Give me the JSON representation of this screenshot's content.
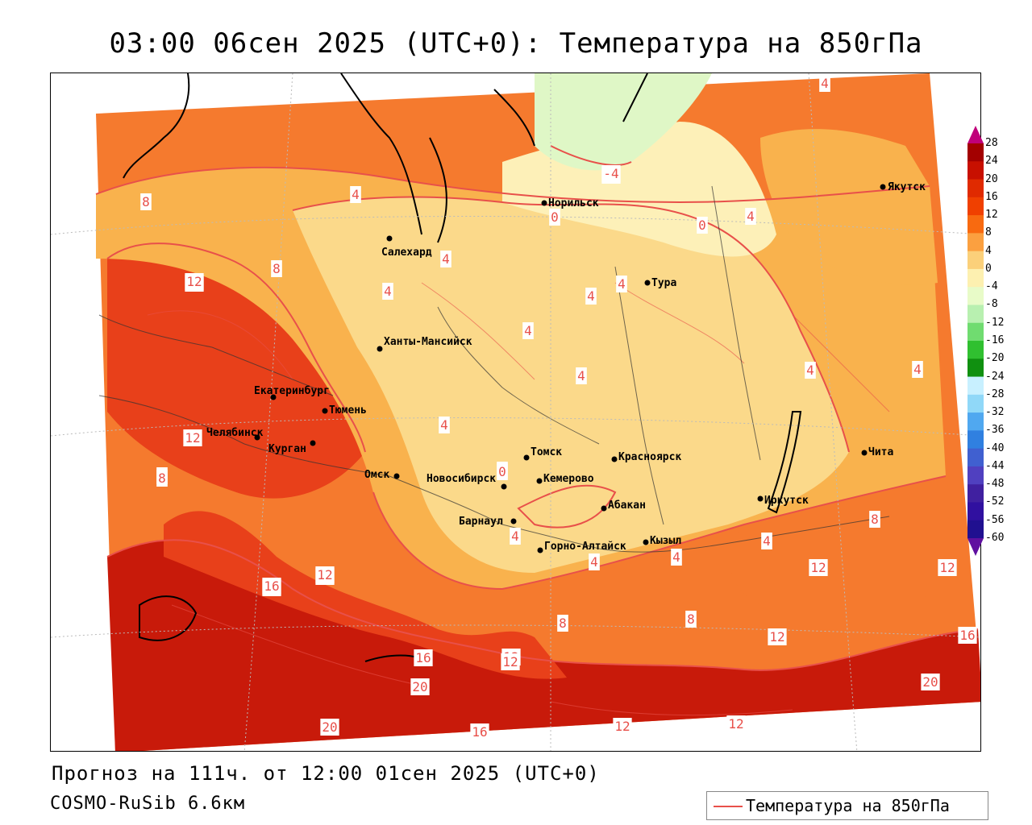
{
  "title": "03:00 06сен 2025 (UTC+0): Температура на 850гПа",
  "footer": {
    "forecast": "Прогноз на 111ч. от 12:00 01сен 2025 (UTC+0)",
    "model": "COSMO-RuSib 6.6км"
  },
  "legend": {
    "label": "Температура на 850гПа",
    "line_color": "#e8504a"
  },
  "colorbar": {
    "labels": [
      "28",
      "24",
      "20",
      "16",
      "12",
      "8",
      "4",
      "0",
      "-4",
      "-8",
      "-12",
      "-16",
      "-20",
      "-24",
      "-28",
      "-32",
      "-36",
      "-40",
      "-44",
      "-48",
      "-52",
      "-56",
      "-60"
    ],
    "colors": [
      "#c0007a",
      "#a30000",
      "#c81000",
      "#e02a00",
      "#f04000",
      "#f86a10",
      "#fba040",
      "#fbd07a",
      "#fdf0b0",
      "#e8fbc8",
      "#b8f0b0",
      "#70dc70",
      "#30c030",
      "#109010",
      "#c8f0ff",
      "#90d8f8",
      "#50a8f0",
      "#3080e0",
      "#4060d0",
      "#5040c0",
      "#4020a0",
      "#3010a0",
      "#201090",
      "#6010a0"
    ]
  },
  "cities": [
    {
      "name": "Норильск"
    },
    {
      "name": "Якутск"
    },
    {
      "name": "Салехард"
    },
    {
      "name": "Тура"
    },
    {
      "name": "Ханты-Мансийск"
    },
    {
      "name": "Екатеринбург"
    },
    {
      "name": "Тюмень"
    },
    {
      "name": "Челябинск"
    },
    {
      "name": "Курган"
    },
    {
      "name": "Омск"
    },
    {
      "name": "Новосибирск"
    },
    {
      "name": "Томск"
    },
    {
      "name": "Кемерово"
    },
    {
      "name": "Красноярск"
    },
    {
      "name": "Абакан"
    },
    {
      "name": "Барнаул"
    },
    {
      "name": "Горно-Алтайск"
    },
    {
      "name": "Кызыл"
    },
    {
      "name": "Иркутск"
    },
    {
      "name": "Чита"
    }
  ],
  "contour_labels": [
    "4",
    "-4",
    "0",
    "8",
    "12",
    "16",
    "20",
    "12",
    "4",
    "4",
    "4",
    "4",
    "4",
    "4",
    "0",
    "0",
    "4",
    "4",
    "4",
    "8",
    "12",
    "16",
    "12",
    "16",
    "20",
    "12",
    "16",
    "12",
    "12",
    "8",
    "8",
    "12",
    "4",
    "4",
    "4",
    "4",
    "12",
    "8",
    "12",
    "16",
    "20",
    "12",
    "8",
    "8",
    "12",
    "4",
    "4",
    "0",
    "-4"
  ],
  "colors": {
    "title_text": "#000000",
    "contour_line": "#e8504a",
    "deep_red": "#c81a0a",
    "red": "#e8401a",
    "orange": "#f57a2e",
    "light_orange": "#f9b24d",
    "yellow": "#fbd98a",
    "pale_yellow": "#fdf0b8",
    "pale_green": "#dff7c6"
  }
}
